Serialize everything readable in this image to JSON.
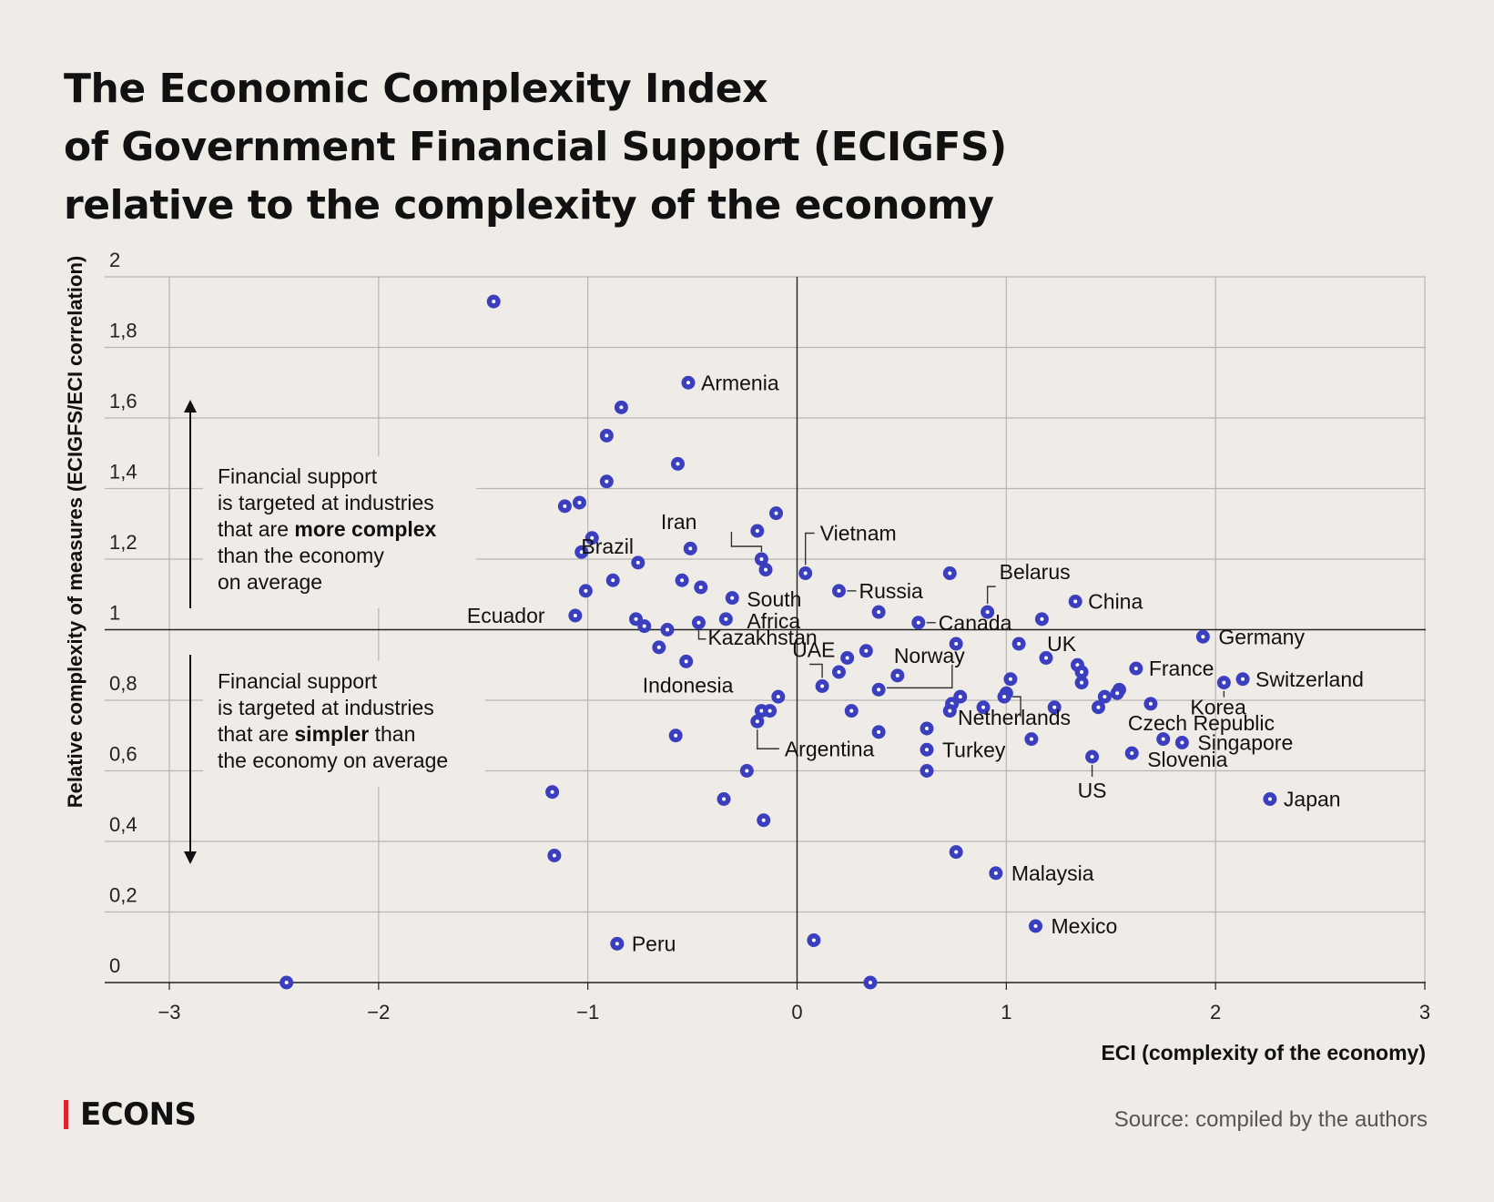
{
  "title_lines": [
    "The Economic Complexity Index",
    "of Government Financial Support (ECIGFS)",
    "relative to the complexity of the economy"
  ],
  "brand": "ECONS",
  "source": "Source: compiled by the authors",
  "colors": {
    "point": "#3b3fbf",
    "background": "#efece8",
    "grid": "#b5b5b5",
    "axis": "#222222",
    "brand_accent": "#e0242e"
  },
  "annotations": {
    "upper": {
      "lines": [
        [
          {
            "t": "Financial support"
          }
        ],
        [
          {
            "t": "is targeted at industries"
          }
        ],
        [
          {
            "t": "that are "
          },
          {
            "t": "more complex",
            "b": true
          }
        ],
        [
          {
            "t": "than the economy"
          }
        ],
        [
          {
            "t": "on average"
          }
        ]
      ]
    },
    "lower": {
      "lines": [
        [
          {
            "t": "Financial support"
          }
        ],
        [
          {
            "t": "is targeted at industries"
          }
        ],
        [
          {
            "t": "that are "
          },
          {
            "t": "simpler",
            "b": true
          },
          {
            "t": " than"
          }
        ],
        [
          {
            "t": "the economy on average"
          }
        ]
      ]
    }
  },
  "chart_data": {
    "type": "scatter",
    "xlabel": "ECI (complexity of the economy)",
    "ylabel": "Relative complexity of measures (ECIGFS/ECI correlation)",
    "xlim": [
      -3,
      3
    ],
    "ylim": [
      0,
      2
    ],
    "x_ticks": [
      "−3",
      "−2",
      "−1",
      "0",
      "1",
      "2",
      "3"
    ],
    "y_ticks": [
      "0",
      "0,2",
      "0,4",
      "0,6",
      "0,8",
      "1",
      "1,2",
      "1,4",
      "1,6",
      "1,8",
      "2"
    ],
    "reference_lines": {
      "x": 0,
      "y": 1
    },
    "grid": true,
    "points": [
      {
        "x": -1.45,
        "y": 1.93
      },
      {
        "x": -0.52,
        "y": 1.7,
        "label": "Armenia"
      },
      {
        "x": -0.84,
        "y": 1.63
      },
      {
        "x": -0.91,
        "y": 1.55
      },
      {
        "x": -0.57,
        "y": 1.47
      },
      {
        "x": -0.91,
        "y": 1.42
      },
      {
        "x": -1.11,
        "y": 1.35
      },
      {
        "x": -1.04,
        "y": 1.36
      },
      {
        "x": -0.1,
        "y": 1.33
      },
      {
        "x": -0.19,
        "y": 1.28,
        "label": "Iran"
      },
      {
        "x": -0.98,
        "y": 1.26
      },
      {
        "x": -0.51,
        "y": 1.23
      },
      {
        "x": -1.03,
        "y": 1.22
      },
      {
        "x": -0.17,
        "y": 1.2,
        "label": "Brazil"
      },
      {
        "x": -0.76,
        "y": 1.19
      },
      {
        "x": -0.15,
        "y": 1.17
      },
      {
        "x": 0.04,
        "y": 1.16,
        "label": "Vietnam"
      },
      {
        "x": 0.73,
        "y": 1.16
      },
      {
        "x": -0.88,
        "y": 1.14
      },
      {
        "x": -0.55,
        "y": 1.14
      },
      {
        "x": -0.46,
        "y": 1.12
      },
      {
        "x": 0.2,
        "y": 1.11,
        "label": "Russia"
      },
      {
        "x": -1.01,
        "y": 1.11
      },
      {
        "x": -0.31,
        "y": 1.09
      },
      {
        "x": 1.33,
        "y": 1.08,
        "label": "China"
      },
      {
        "x": 0.39,
        "y": 1.05
      },
      {
        "x": 0.91,
        "y": 1.05,
        "label": "Belarus"
      },
      {
        "x": -1.06,
        "y": 1.04,
        "label": "Ecuador"
      },
      {
        "x": -0.77,
        "y": 1.03
      },
      {
        "x": -0.34,
        "y": 1.03,
        "label": "South Africa"
      },
      {
        "x": -0.47,
        "y": 1.02,
        "label": "Kazakhstan"
      },
      {
        "x": 1.17,
        "y": 1.03
      },
      {
        "x": 0.58,
        "y": 1.02,
        "label": "Canada"
      },
      {
        "x": -0.73,
        "y": 1.01
      },
      {
        "x": -0.62,
        "y": 1.0
      },
      {
        "x": 1.94,
        "y": 0.98,
        "label": "Germany"
      },
      {
        "x": 0.76,
        "y": 0.96
      },
      {
        "x": 1.06,
        "y": 0.96,
        "label": "UK"
      },
      {
        "x": -0.66,
        "y": 0.95
      },
      {
        "x": 0.33,
        "y": 0.94
      },
      {
        "x": 0.24,
        "y": 0.92
      },
      {
        "x": 1.19,
        "y": 0.92
      },
      {
        "x": -0.53,
        "y": 0.91,
        "label": "Indonesia"
      },
      {
        "x": 1.34,
        "y": 0.9
      },
      {
        "x": 1.62,
        "y": 0.89,
        "label": "France"
      },
      {
        "x": 0.2,
        "y": 0.88
      },
      {
        "x": 1.36,
        "y": 0.88
      },
      {
        "x": 0.48,
        "y": 0.87,
        "label": "Norway"
      },
      {
        "x": 1.02,
        "y": 0.86
      },
      {
        "x": 2.13,
        "y": 0.86,
        "label": "Switzerland"
      },
      {
        "x": 2.04,
        "y": 0.85,
        "label": "Korea"
      },
      {
        "x": 1.36,
        "y": 0.85
      },
      {
        "x": 0.12,
        "y": 0.84,
        "label": "UAE"
      },
      {
        "x": 0.39,
        "y": 0.83
      },
      {
        "x": 1.54,
        "y": 0.83
      },
      {
        "x": 1.0,
        "y": 0.82
      },
      {
        "x": -0.09,
        "y": 0.81
      },
      {
        "x": 0.78,
        "y": 0.81
      },
      {
        "x": 0.99,
        "y": 0.81,
        "label": "Netherlands"
      },
      {
        "x": 1.47,
        "y": 0.81
      },
      {
        "x": 1.53,
        "y": 0.82
      },
      {
        "x": 0.74,
        "y": 0.79
      },
      {
        "x": 0.89,
        "y": 0.78
      },
      {
        "x": 1.23,
        "y": 0.78
      },
      {
        "x": 1.69,
        "y": 0.79,
        "label": "Czech Republic"
      },
      {
        "x": -0.17,
        "y": 0.77
      },
      {
        "x": -0.13,
        "y": 0.77
      },
      {
        "x": 0.26,
        "y": 0.77
      },
      {
        "x": 0.73,
        "y": 0.77
      },
      {
        "x": 1.44,
        "y": 0.78
      },
      {
        "x": -0.19,
        "y": 0.74,
        "label": "Argentina"
      },
      {
        "x": 0.62,
        "y": 0.72
      },
      {
        "x": 0.39,
        "y": 0.71
      },
      {
        "x": -0.58,
        "y": 0.7
      },
      {
        "x": 1.12,
        "y": 0.69
      },
      {
        "x": 1.75,
        "y": 0.69
      },
      {
        "x": 1.84,
        "y": 0.68,
        "label": "Singapore"
      },
      {
        "x": 0.62,
        "y": 0.66,
        "label": "Turkey"
      },
      {
        "x": 1.6,
        "y": 0.65,
        "label": "Slovenia"
      },
      {
        "x": 1.41,
        "y": 0.64,
        "label": "US"
      },
      {
        "x": -0.24,
        "y": 0.6
      },
      {
        "x": 0.62,
        "y": 0.6
      },
      {
        "x": -1.17,
        "y": 0.54
      },
      {
        "x": -0.35,
        "y": 0.52
      },
      {
        "x": 2.26,
        "y": 0.52,
        "label": "Japan"
      },
      {
        "x": -0.16,
        "y": 0.46
      },
      {
        "x": 0.76,
        "y": 0.37
      },
      {
        "x": -1.16,
        "y": 0.36
      },
      {
        "x": 0.95,
        "y": 0.31,
        "label": "Malaysia"
      },
      {
        "x": 1.14,
        "y": 0.16,
        "label": "Mexico"
      },
      {
        "x": 0.08,
        "y": 0.12
      },
      {
        "x": -0.86,
        "y": 0.11,
        "label": "Peru"
      },
      {
        "x": -2.44,
        "y": 0.0
      },
      {
        "x": 0.35,
        "y": 0.0
      }
    ]
  }
}
